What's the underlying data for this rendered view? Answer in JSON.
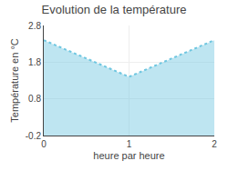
{
  "chart_data": {
    "type": "area",
    "title": "Evolution de la température",
    "x": [
      0,
      1,
      2
    ],
    "values": [
      2.4,
      1.4,
      2.4
    ],
    "xlabel": "heure par heure",
    "ylabel": "Température en °C",
    "xlim": [
      0,
      2
    ],
    "ylim": [
      -0.2,
      2.8
    ],
    "xticks": [
      0,
      1,
      2
    ],
    "yticks": [
      -0.2,
      0.8,
      1.8,
      2.8
    ],
    "color": "#6ec6e0",
    "line_style": "dotted",
    "grid": true
  }
}
